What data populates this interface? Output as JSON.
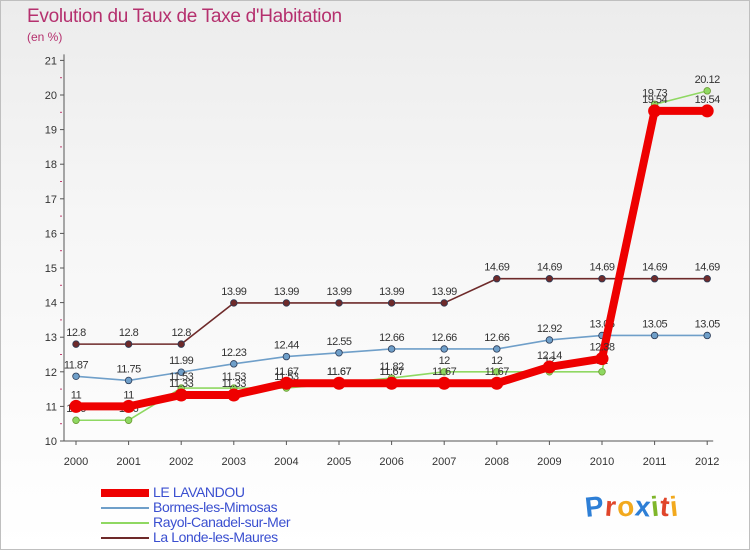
{
  "title": "Evolution du Taux de Taxe d'Habitation",
  "unit_label": "(en %)",
  "logo": {
    "letters": [
      "P",
      "r",
      "o",
      "x",
      "i",
      "t",
      "i"
    ],
    "colors": [
      "#2e7fd6",
      "#e0452a",
      "#f2a91d",
      "#2e7fd6",
      "#7fb62a",
      "#e0452a",
      "#f2a91d"
    ]
  },
  "legend": [
    {
      "label": "LE LAVANDOU",
      "color": "#ee0000"
    },
    {
      "label": "Bormes-les-Mimosas",
      "color": "#6f9fc9"
    },
    {
      "label": "Rayol-Canadel-sur-Mer",
      "color": "#8fd862"
    },
    {
      "label": "La Londe-les-Maures",
      "color": "#6e2a2a"
    }
  ],
  "chart_data": {
    "type": "line",
    "title": "Evolution du Taux de Taxe d'Habitation",
    "ylabel": "(en %)",
    "xlabel": "",
    "ylim": [
      10,
      21
    ],
    "yticks": [
      10,
      11,
      12,
      13,
      14,
      15,
      16,
      17,
      18,
      19,
      20,
      21
    ],
    "categories": [
      "2000",
      "2001",
      "2002",
      "2003",
      "2004",
      "2005",
      "2006",
      "2007",
      "2008",
      "2009",
      "2010",
      "2011",
      "2012"
    ],
    "grid": false,
    "legend_position": "bottom-left",
    "series": [
      {
        "name": "La Londe-les-Maures",
        "color": "#6e2a2a",
        "values": [
          12.8,
          12.8,
          12.8,
          13.99,
          13.99,
          13.99,
          13.99,
          13.99,
          14.69,
          14.69,
          14.69,
          14.69,
          14.69
        ],
        "labels": [
          "12.8",
          "12.8",
          "12.8",
          "13.99",
          "13.99",
          "13.99",
          "13.99",
          "13.99",
          "14.69",
          "14.69",
          "14.69",
          "14.69",
          "14.69"
        ]
      },
      {
        "name": "Bormes-les-Mimosas",
        "color": "#6f9fc9",
        "values": [
          11.87,
          11.75,
          11.99,
          12.23,
          12.44,
          12.55,
          12.66,
          12.66,
          12.66,
          12.92,
          13.05,
          13.05,
          13.05
        ],
        "labels": [
          "11.87",
          "11.75",
          "11.99",
          "12.23",
          "12.44",
          "12.55",
          "12.66",
          "12.66",
          "12.66",
          "12.92",
          "13.05",
          "13.05",
          "13.05"
        ]
      },
      {
        "name": "Rayol-Canadel-sur-Mer",
        "color": "#8fd862",
        "values": [
          10.6,
          10.6,
          11.53,
          11.53,
          11.53,
          11.67,
          11.82,
          12,
          12,
          12,
          12,
          19.73,
          20.12
        ],
        "labels": [
          "10.6",
          "10.6",
          "11.53",
          "11.53",
          "11.53",
          "11.67",
          "11.82",
          "12",
          "12",
          "12",
          "12",
          "19.73",
          "20.12"
        ]
      },
      {
        "name": "LE LAVANDOU",
        "color": "#ee0000",
        "values": [
          11,
          11,
          11.33,
          11.33,
          11.67,
          11.67,
          11.67,
          11.67,
          11.67,
          12.14,
          12.38,
          19.54,
          19.54
        ],
        "labels": [
          "11",
          "11",
          "11.33",
          "11.33",
          "11.67",
          "11.67",
          "11.67",
          "11.67",
          "11.67",
          "12.14",
          "12.38",
          "19.54",
          "19.54"
        ]
      }
    ]
  }
}
